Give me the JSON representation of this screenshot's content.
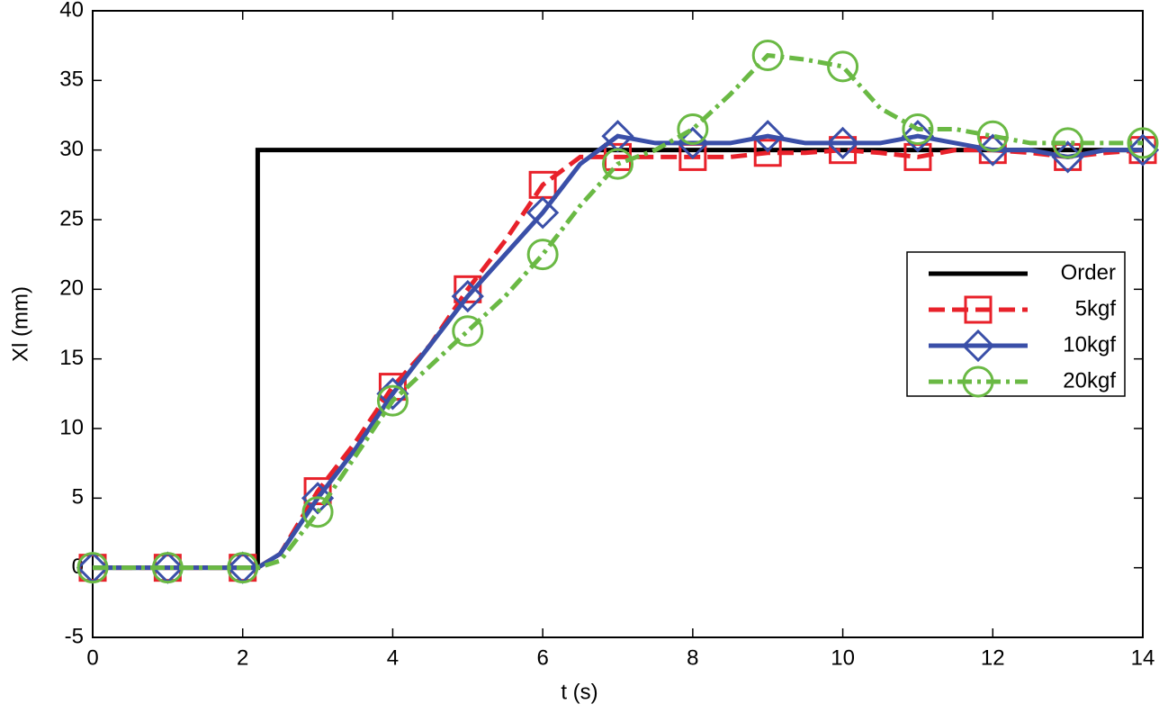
{
  "chart_data": {
    "type": "line",
    "xlabel": "t (s)",
    "ylabel": "Xl (mm)",
    "x": [
      0,
      0.5,
      1,
      1.5,
      2,
      2.2,
      2.2,
      2.5,
      3,
      3.5,
      4,
      4.5,
      5,
      5.5,
      6,
      6.5,
      7,
      7.5,
      8,
      8.5,
      9,
      9.5,
      10,
      10.5,
      11,
      11.5,
      12,
      12.5,
      13,
      13.5,
      14
    ],
    "xlim": [
      0,
      14
    ],
    "xticks": [
      0,
      2,
      4,
      6,
      8,
      10,
      12,
      14
    ],
    "ylim": [
      -5,
      40
    ],
    "yticks": [
      -5,
      0,
      5,
      10,
      15,
      20,
      25,
      30,
      35,
      40
    ],
    "legend": "right",
    "series": [
      {
        "name": "Order",
        "color": "#000000",
        "dash": "solid",
        "marker": "none",
        "values": [
          0,
          0,
          0,
          0,
          0,
          0,
          30,
          30,
          30,
          30,
          30,
          30,
          30,
          30,
          30,
          30,
          30,
          30,
          30,
          30,
          30,
          30,
          30,
          30,
          30,
          30,
          30,
          30,
          30,
          30,
          30
        ]
      },
      {
        "name": "5kgf",
        "color": "#e8212a",
        "dash": "dashed",
        "marker": "square",
        "values": [
          0,
          0,
          0,
          0,
          0,
          0,
          0,
          1,
          5.5,
          9,
          13,
          16,
          20,
          23.5,
          27.5,
          29.5,
          29.5,
          29.5,
          29.5,
          29.5,
          29.8,
          29.8,
          30,
          29.8,
          29.5,
          30,
          30,
          29.8,
          29.5,
          29.8,
          30
        ]
      },
      {
        "name": "10kgf",
        "color": "#3a4fa8",
        "dash": "solid",
        "marker": "diamond",
        "values": [
          0,
          0,
          0,
          0,
          0,
          0,
          0,
          1,
          5,
          8.5,
          12.5,
          16,
          19.5,
          22.5,
          25.5,
          29,
          31,
          30.5,
          30.5,
          30.5,
          31,
          30.5,
          30.5,
          30.5,
          31,
          30.5,
          30,
          30,
          29.5,
          30,
          30
        ]
      },
      {
        "name": "20kgf",
        "color": "#6ab944",
        "dash": "dashdot",
        "marker": "circle",
        "values": [
          0,
          0,
          0,
          0,
          0,
          0,
          0,
          0.5,
          4,
          8,
          12,
          14.5,
          17,
          19.5,
          22.5,
          26,
          29,
          30,
          31.5,
          34,
          36.8,
          36.5,
          36,
          33,
          31.5,
          31.5,
          31,
          30.5,
          30.5,
          30.5,
          30.5
        ]
      }
    ]
  }
}
